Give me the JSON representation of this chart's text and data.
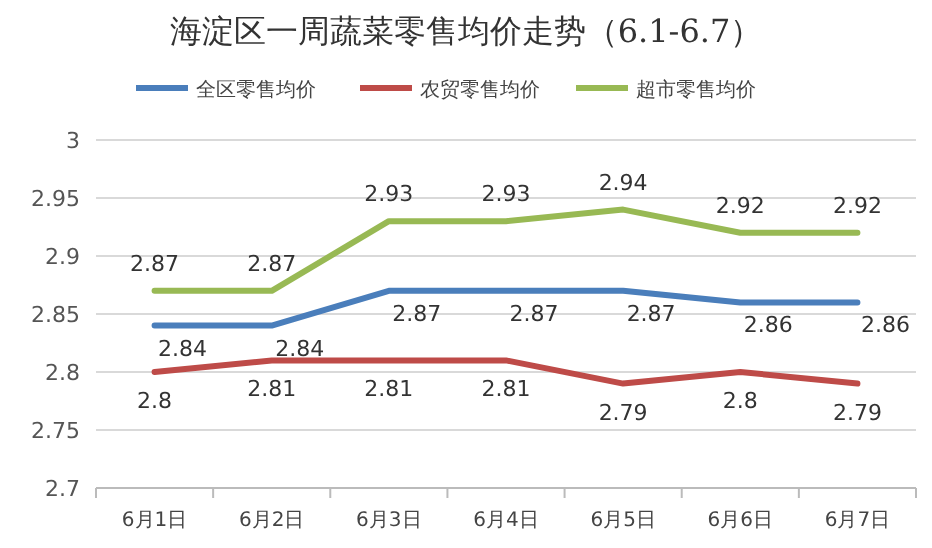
{
  "chart_data": {
    "type": "line",
    "title": "海淀区一周蔬菜零售均价走势（6.1-6.7）",
    "categories": [
      "6月1日",
      "6月2日",
      "6月3日",
      "6月4日",
      "6月5日",
      "6月6日",
      "6月7日"
    ],
    "series": [
      {
        "name": "全区零售均价",
        "color": "#4a7ebb",
        "values": [
          2.84,
          2.84,
          2.87,
          2.87,
          2.87,
          2.86,
          2.86
        ]
      },
      {
        "name": "农贸零售均价",
        "color": "#be4b48",
        "values": [
          2.8,
          2.81,
          2.81,
          2.81,
          2.79,
          2.8,
          2.79
        ]
      },
      {
        "name": "超市零售均价",
        "color": "#98b954",
        "values": [
          2.87,
          2.87,
          2.93,
          2.93,
          2.94,
          2.92,
          2.92
        ]
      }
    ],
    "ylim": [
      2.7,
      3
    ],
    "yticks": [
      2.7,
      2.75,
      2.8,
      2.85,
      2.9,
      2.95,
      3
    ],
    "grid": "y",
    "legend": "top",
    "data_labels": true
  }
}
